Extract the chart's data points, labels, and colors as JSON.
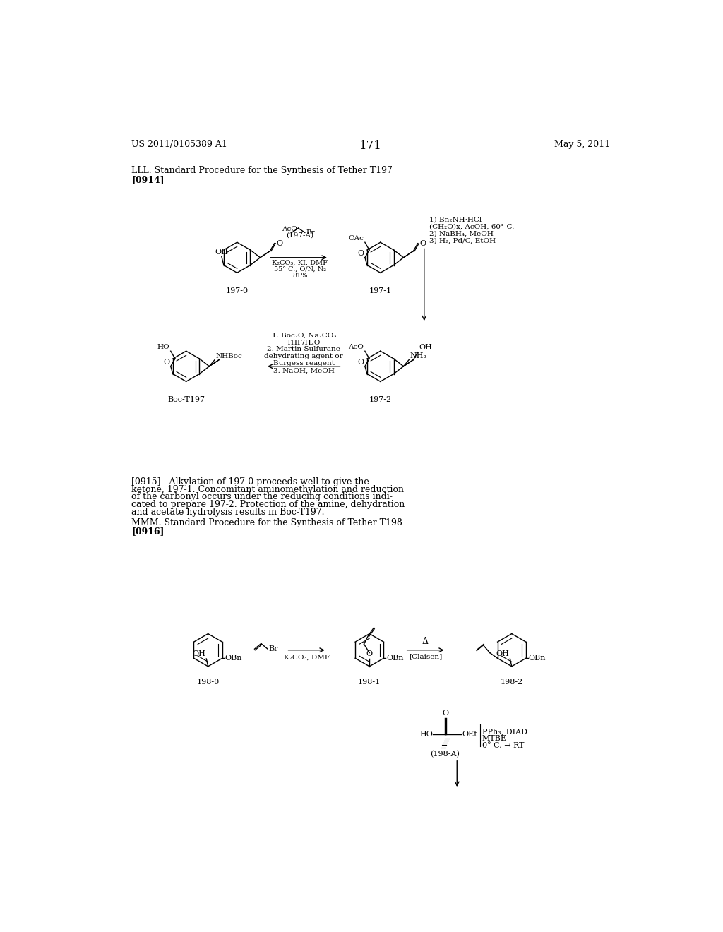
{
  "page_number": "171",
  "header_left": "US 2011/0105389 A1",
  "header_right": "May 5, 2011",
  "section1_title": "LLL. Standard Procedure for the Synthesis of Tether T197",
  "section1_para": "[0914]",
  "section2_text_lines": [
    "[0915]   Alkylation of 197-0 proceeds well to give the",
    "ketone, 197-1. Concomitant aminomethylation and reduction",
    "of the carbonyl occurs under the reducing conditions indi-",
    "cated to prepare 197-2. Protection of the amine, dehydration",
    "and acetate hydrolysis results in Boc-T197."
  ],
  "section3_title": "MMM. Standard Procedure for the Synthesis of Tether T198",
  "section3_para": "[0916]",
  "background_color": "#ffffff",
  "text_color": "#000000"
}
